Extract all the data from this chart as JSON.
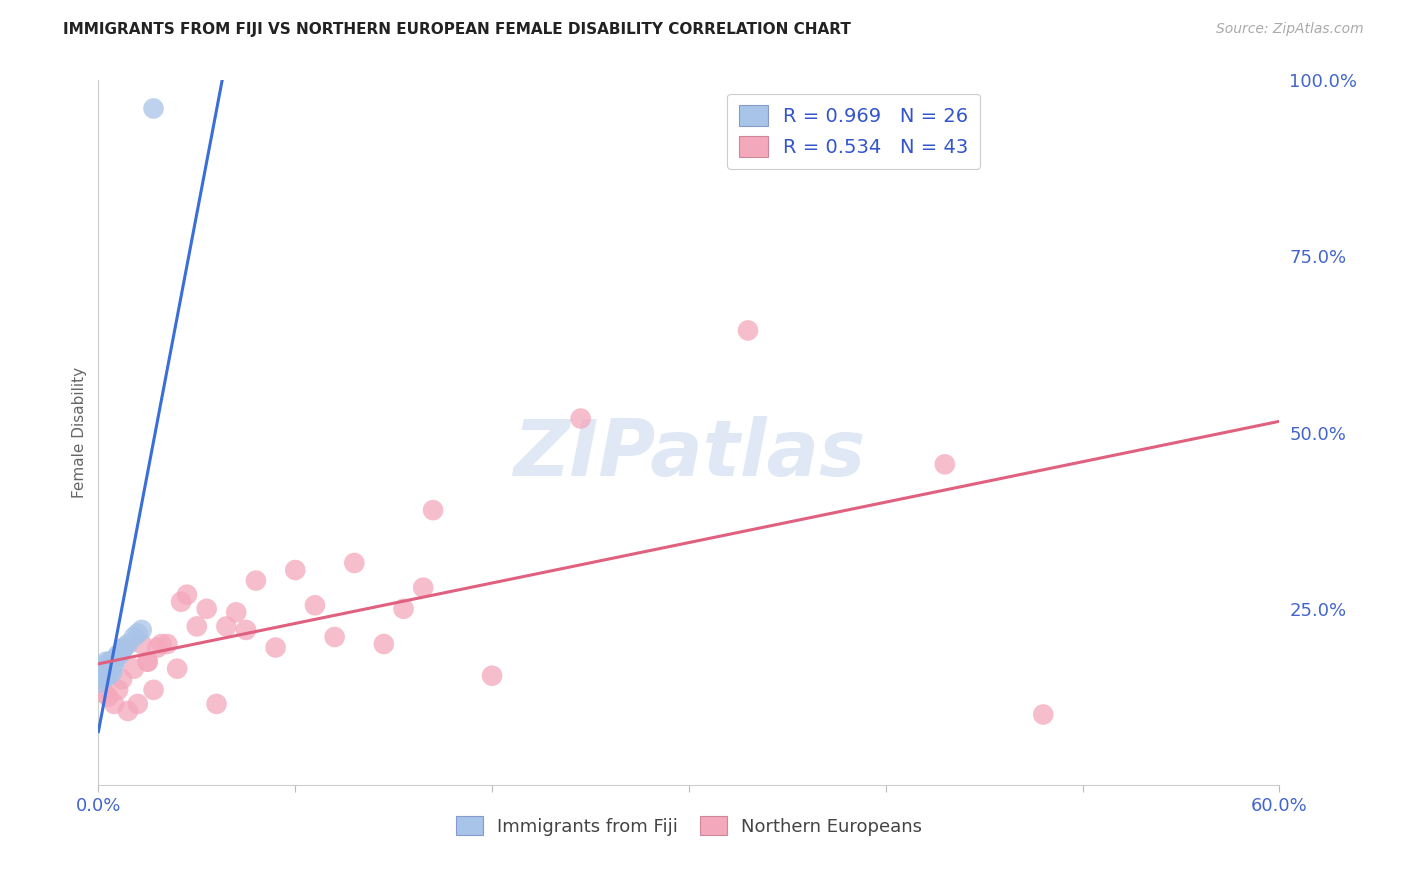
{
  "title": "IMMIGRANTS FROM FIJI VS NORTHERN EUROPEAN FEMALE DISABILITY CORRELATION CHART",
  "source": "Source: ZipAtlas.com",
  "ylabel": "Female Disability",
  "xmin": 0.0,
  "xmax": 0.6,
  "ymin": 0.0,
  "ymax": 1.0,
  "yticks_right": [
    0.0,
    0.25,
    0.5,
    0.75,
    1.0
  ],
  "ytick_right_labels": [
    "",
    "25.0%",
    "50.0%",
    "75.0%",
    "100.0%"
  ],
  "fiji_R": 0.969,
  "fiji_N": 26,
  "northern_R": 0.534,
  "northern_N": 43,
  "fiji_color": "#a8c4e8",
  "northern_color": "#f4a8bc",
  "fiji_line_color": "#3a6fd8",
  "northern_line_color": "#e06080",
  "watermark_text": "ZIPatlas",
  "fiji_x": [
    0.001,
    0.001,
    0.002,
    0.002,
    0.003,
    0.003,
    0.004,
    0.004,
    0.005,
    0.005,
    0.006,
    0.006,
    0.007,
    0.007,
    0.008,
    0.008,
    0.009,
    0.01,
    0.011,
    0.012,
    0.013,
    0.015,
    0.018,
    0.02,
    0.022,
    0.028
  ],
  "fiji_y": [
    0.145,
    0.165,
    0.15,
    0.16,
    0.155,
    0.17,
    0.155,
    0.175,
    0.155,
    0.165,
    0.165,
    0.175,
    0.16,
    0.175,
    0.17,
    0.175,
    0.18,
    0.185,
    0.185,
    0.19,
    0.195,
    0.2,
    0.21,
    0.215,
    0.22,
    0.96
  ],
  "northern_x": [
    0.001,
    0.003,
    0.004,
    0.005,
    0.006,
    0.008,
    0.01,
    0.012,
    0.013,
    0.015,
    0.018,
    0.02,
    0.022,
    0.025,
    0.025,
    0.028,
    0.03,
    0.032,
    0.035,
    0.04,
    0.042,
    0.045,
    0.05,
    0.055,
    0.06,
    0.065,
    0.07,
    0.075,
    0.08,
    0.09,
    0.1,
    0.11,
    0.12,
    0.13,
    0.145,
    0.155,
    0.165,
    0.17,
    0.2,
    0.245,
    0.33,
    0.43,
    0.48
  ],
  "northern_y": [
    0.16,
    0.13,
    0.16,
    0.125,
    0.175,
    0.115,
    0.135,
    0.15,
    0.195,
    0.105,
    0.165,
    0.115,
    0.2,
    0.175,
    0.175,
    0.135,
    0.195,
    0.2,
    0.2,
    0.165,
    0.26,
    0.27,
    0.225,
    0.25,
    0.115,
    0.225,
    0.245,
    0.22,
    0.29,
    0.195,
    0.305,
    0.255,
    0.21,
    0.315,
    0.2,
    0.25,
    0.28,
    0.39,
    0.155,
    0.52,
    0.645,
    0.455,
    0.1
  ],
  "grid_color": "#dddddd",
  "background_color": "#ffffff",
  "title_fontsize": 11,
  "axis_label_color": "#4466cc",
  "legend_label_color": "#3355cc"
}
